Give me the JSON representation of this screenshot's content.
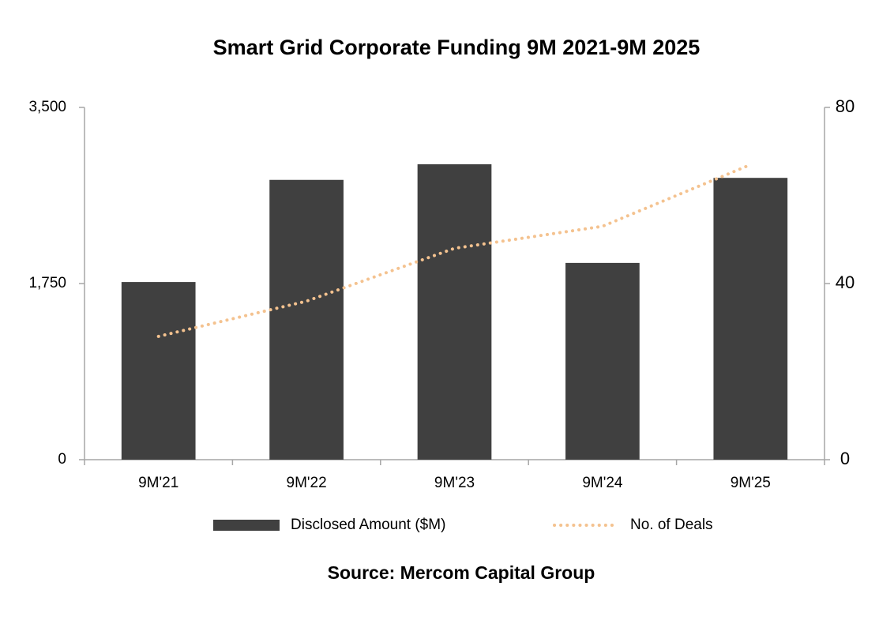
{
  "chart_data": {
    "type": "bar",
    "title": "Smart Grid Corporate Funding 9M 2021-9M 2025",
    "source": "Source: Mercom Capital Group",
    "categories": [
      "9M'21",
      "9M'22",
      "9M'23",
      "9M'24",
      "9M'25"
    ],
    "series": [
      {
        "name": "Disclosed Amount ($M)",
        "type": "bar",
        "color": "#404040",
        "values": [
          1765,
          2780,
          2935,
          1955,
          2800
        ]
      },
      {
        "name": "No. of Deals",
        "type": "line",
        "axis": "y2",
        "color": "#f4c28f",
        "line_style": "dotted",
        "values": [
          28,
          36,
          48,
          53,
          67
        ]
      }
    ],
    "ylim": [
      0,
      3500
    ],
    "yticks": [
      0,
      {
        "value": 1750,
        "label": "1,750"
      },
      {
        "value": 3500,
        "label": "3,500"
      }
    ],
    "y2lim": [
      0,
      80
    ],
    "y2ticks": [
      0,
      40,
      80
    ],
    "grid": false,
    "legend": "bottom"
  }
}
